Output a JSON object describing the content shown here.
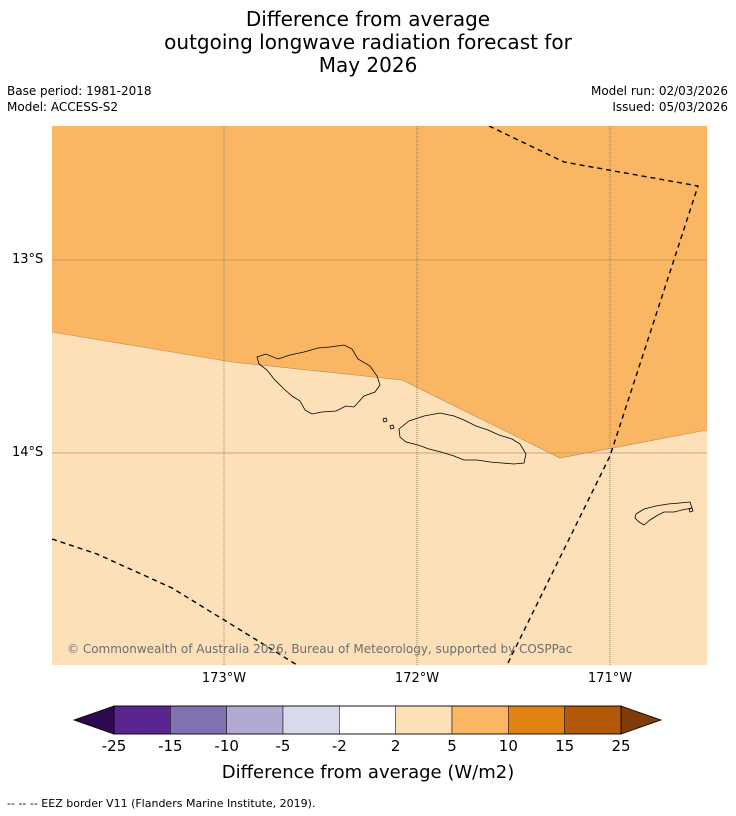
{
  "title": {
    "line1": "Difference from average",
    "line2": "outgoing longwave radiation forecast for",
    "line3": "May 2026"
  },
  "meta": {
    "base_period": "Base period: 1981-2018",
    "model": "Model: ACCESS-S2",
    "model_run": "Model run: 02/03/2026",
    "issued": "Issued: 05/03/2026"
  },
  "map": {
    "lat_labels": [
      "13°S",
      "14°S"
    ],
    "lon_labels": [
      "173°W",
      "172°W",
      "171°W"
    ],
    "copyright": "© Commonwealth of Australia 2026, Bureau of Meteorology, supported by COSPPac",
    "region_colors": {
      "upper": "#fbb663",
      "lower": "#fde0b7"
    }
  },
  "colorbar": {
    "ticks": [
      "-25",
      "-15",
      "-10",
      "-5",
      "-2",
      "2",
      "5",
      "10",
      "15",
      "25"
    ],
    "colors": [
      "#5a2590",
      "#8272b0",
      "#b1a9d2",
      "#d9d9ec",
      "#ffffff",
      "#fde0b7",
      "#fbb663",
      "#e08313",
      "#b35806"
    ],
    "under_color": "#2d0a4e",
    "over_color": "#7f3b08",
    "label": "Difference from average (W/m2)"
  },
  "footnote": "--  --  -- EEZ border V11 (Flanders Marine Institute, 2019)."
}
